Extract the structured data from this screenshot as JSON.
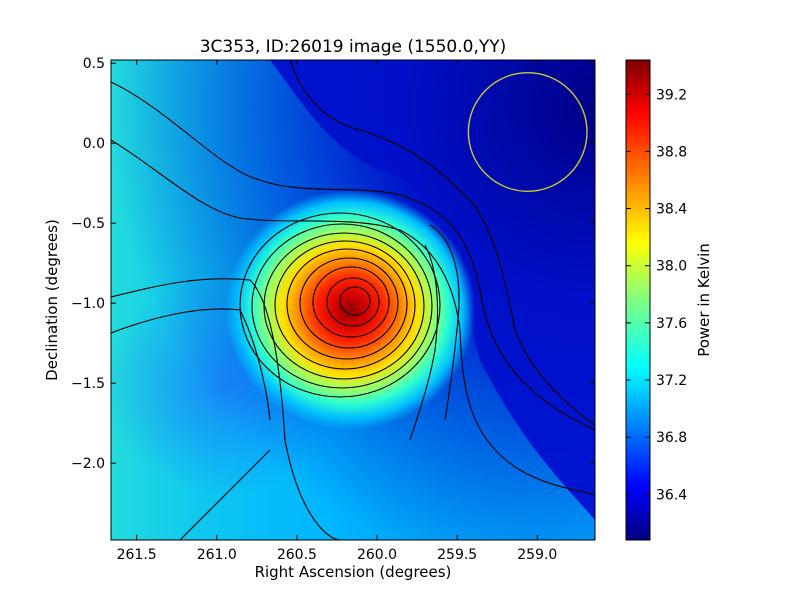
{
  "chart_data": {
    "type": "heatmap",
    "title": "3C353, ID:26019 image (1550.0,YY)",
    "xlabel": "Right Ascension (degrees)",
    "ylabel": "Declination (degrees)",
    "xlim": [
      261.66,
      258.64
    ],
    "ylim": [
      -2.48,
      0.52
    ],
    "x_ticks": [
      261.5,
      261.0,
      260.5,
      260.0,
      259.5,
      259.0
    ],
    "x_tick_labels": [
      "261.5",
      "261.0",
      "260.5",
      "260.0",
      "259.5",
      "259.0"
    ],
    "y_ticks": [
      0.5,
      0.0,
      -0.5,
      -1.0,
      -1.5,
      -2.0
    ],
    "y_tick_labels": [
      "0.5",
      "0.0",
      "−0.5",
      "−1.0",
      "−1.5",
      "−2.0"
    ],
    "colormap": "jet",
    "colorbar": {
      "label": "Power in Kelvin",
      "range": [
        36.08,
        39.44
      ],
      "ticks": [
        36.4,
        36.8,
        37.2,
        37.6,
        38.0,
        38.4,
        38.8,
        39.2
      ],
      "tick_labels": [
        "36.4",
        "36.8",
        "37.2",
        "37.6",
        "38.0",
        "38.4",
        "38.8",
        "39.2"
      ]
    },
    "peak": {
      "ra": 260.1,
      "dec": -1.0,
      "value": 39.44
    },
    "beam_circle": {
      "ra": 259.06,
      "dec": 0.07,
      "radius_deg": 0.37,
      "color": "#c8c832"
    },
    "contour_color": "#000000"
  }
}
